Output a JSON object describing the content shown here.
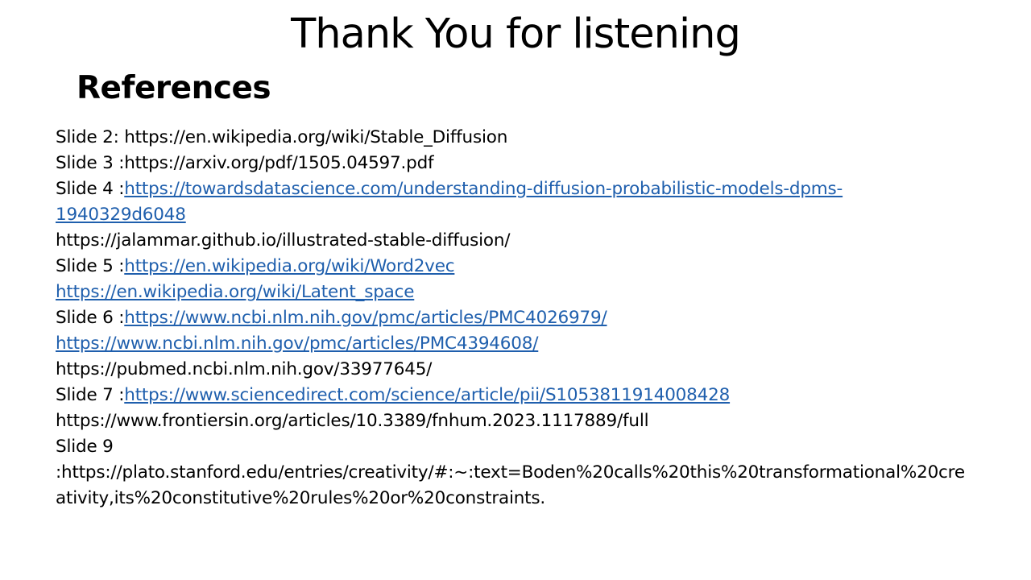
{
  "title": "Thank You for listening",
  "subtitle": "References",
  "lines": {
    "l1_text": "Slide 2: https://en.wikipedia.org/wiki/Stable_Diffusion",
    "l2_text": "Slide 3 :https://arxiv.org/pdf/1505.04597.pdf",
    "l3_prefix": "Slide 4 :",
    "l3_link": "https://towardsdatascience.com/understanding-diffusion-probabilistic-models-dpms-",
    "l4_link": "1940329d6048",
    "l5_text": "https://jalammar.github.io/illustrated-stable-diffusion/",
    "l6_prefix": "Slide 5 :",
    "l6_link": "https://en.wikipedia.org/wiki/Word2vec",
    "l7_link": "https://en.wikipedia.org/wiki/Latent_space",
    "l8_prefix": "Slide 6 :",
    "l8_link": "https://www.ncbi.nlm.nih.gov/pmc/articles/PMC4026979/",
    "l9_link": "https://www.ncbi.nlm.nih.gov/pmc/articles/PMC4394608/",
    "l10_text": "https://pubmed.ncbi.nlm.nih.gov/33977645/",
    "l11_prefix": "Slide 7 :",
    "l11_link": "https://www.sciencedirect.com/science/article/pii/S1053811914008428",
    "l12_text": "https://www.frontiersin.org/articles/10.3389/fnhum.2023.1117889/full",
    "l13_text": "Slide 9",
    "l14_text": ":https://plato.stanford.edu/entries/creativity/#:~:text=Boden%20calls%20this%20transformational%20cre",
    "l15_text": "ativity,its%20constitutive%20rules%20or%20constraints."
  },
  "colors": {
    "link": "#1f5fad",
    "text": "#000000",
    "background": "#ffffff"
  }
}
